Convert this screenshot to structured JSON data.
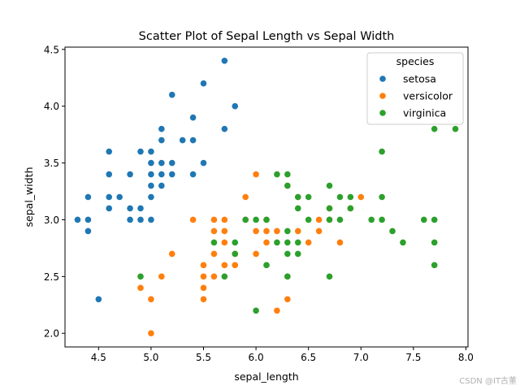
{
  "chart_data": {
    "type": "scatter",
    "title": "Scatter Plot of Sepal Length vs Sepal Width",
    "xlabel": "sepal_length",
    "ylabel": "sepal_width",
    "xlim": [
      4.18,
      8.02
    ],
    "ylim": [
      1.88,
      4.52
    ],
    "x_ticks": [
      4.5,
      5.0,
      5.5,
      6.0,
      6.5,
      7.0,
      7.5,
      8.0
    ],
    "x_tick_labels": [
      "4.5",
      "5.0",
      "5.5",
      "6.0",
      "6.5",
      "7.0",
      "7.5",
      "8.0"
    ],
    "y_ticks": [
      2.0,
      2.5,
      3.0,
      3.5,
      4.0,
      4.5
    ],
    "y_tick_labels": [
      "2.0",
      "2.5",
      "3.0",
      "3.5",
      "4.0",
      "4.5"
    ],
    "grid": false,
    "legend": {
      "title": "species",
      "placement": "top-right"
    },
    "series": [
      {
        "name": "setosa",
        "color": "#1f77b4",
        "points": [
          [
            4.3,
            3.0
          ],
          [
            4.4,
            2.9
          ],
          [
            4.4,
            3.0
          ],
          [
            4.4,
            3.2
          ],
          [
            4.5,
            2.3
          ],
          [
            4.6,
            3.1
          ],
          [
            4.6,
            3.2
          ],
          [
            4.6,
            3.4
          ],
          [
            4.6,
            3.6
          ],
          [
            4.7,
            3.2
          ],
          [
            4.8,
            3.0
          ],
          [
            4.8,
            3.1
          ],
          [
            4.8,
            3.4
          ],
          [
            4.9,
            3.0
          ],
          [
            4.9,
            3.1
          ],
          [
            4.9,
            3.6
          ],
          [
            5.0,
            3.0
          ],
          [
            5.0,
            3.2
          ],
          [
            5.0,
            3.3
          ],
          [
            5.0,
            3.4
          ],
          [
            5.0,
            3.5
          ],
          [
            5.0,
            3.6
          ],
          [
            5.1,
            3.3
          ],
          [
            5.1,
            3.4
          ],
          [
            5.1,
            3.5
          ],
          [
            5.1,
            3.7
          ],
          [
            5.1,
            3.8
          ],
          [
            5.2,
            3.4
          ],
          [
            5.2,
            3.5
          ],
          [
            5.2,
            4.1
          ],
          [
            5.3,
            3.7
          ],
          [
            5.4,
            3.4
          ],
          [
            5.4,
            3.7
          ],
          [
            5.4,
            3.9
          ],
          [
            5.5,
            3.5
          ],
          [
            5.5,
            4.2
          ],
          [
            5.7,
            3.8
          ],
          [
            5.7,
            4.4
          ],
          [
            5.8,
            4.0
          ]
        ]
      },
      {
        "name": "versicolor",
        "color": "#ff7f0e",
        "points": [
          [
            4.9,
            2.4
          ],
          [
            5.0,
            2.0
          ],
          [
            5.0,
            2.3
          ],
          [
            5.1,
            2.5
          ],
          [
            5.2,
            2.7
          ],
          [
            5.4,
            3.0
          ],
          [
            5.5,
            2.3
          ],
          [
            5.5,
            2.4
          ],
          [
            5.5,
            2.5
          ],
          [
            5.5,
            2.6
          ],
          [
            5.6,
            2.5
          ],
          [
            5.6,
            2.7
          ],
          [
            5.6,
            2.9
          ],
          [
            5.6,
            3.0
          ],
          [
            5.7,
            2.6
          ],
          [
            5.7,
            2.8
          ],
          [
            5.7,
            2.9
          ],
          [
            5.7,
            3.0
          ],
          [
            5.8,
            2.6
          ],
          [
            5.8,
            2.7
          ],
          [
            5.9,
            3.0
          ],
          [
            5.9,
            3.2
          ],
          [
            6.0,
            2.7
          ],
          [
            6.0,
            2.9
          ],
          [
            6.0,
            3.4
          ],
          [
            6.1,
            2.8
          ],
          [
            6.1,
            2.9
          ],
          [
            6.1,
            3.0
          ],
          [
            6.2,
            2.2
          ],
          [
            6.2,
            2.9
          ],
          [
            6.3,
            2.3
          ],
          [
            6.3,
            2.5
          ],
          [
            6.3,
            3.3
          ],
          [
            6.4,
            2.9
          ],
          [
            6.4,
            3.2
          ],
          [
            6.5,
            2.8
          ],
          [
            6.6,
            2.9
          ],
          [
            6.6,
            3.0
          ],
          [
            6.7,
            3.0
          ],
          [
            6.7,
            3.1
          ],
          [
            6.8,
            2.8
          ],
          [
            6.9,
            3.1
          ],
          [
            7.0,
            3.2
          ]
        ]
      },
      {
        "name": "virginica",
        "color": "#2ca02c",
        "points": [
          [
            4.9,
            2.5
          ],
          [
            5.6,
            2.8
          ],
          [
            5.7,
            2.5
          ],
          [
            5.8,
            2.7
          ],
          [
            5.8,
            2.8
          ],
          [
            5.9,
            3.0
          ],
          [
            6.0,
            2.2
          ],
          [
            6.0,
            3.0
          ],
          [
            6.1,
            2.6
          ],
          [
            6.1,
            3.0
          ],
          [
            6.2,
            2.8
          ],
          [
            6.2,
            3.4
          ],
          [
            6.3,
            2.5
          ],
          [
            6.3,
            2.7
          ],
          [
            6.3,
            2.8
          ],
          [
            6.3,
            2.9
          ],
          [
            6.3,
            3.3
          ],
          [
            6.3,
            3.4
          ],
          [
            6.4,
            2.7
          ],
          [
            6.4,
            2.8
          ],
          [
            6.4,
            3.1
          ],
          [
            6.4,
            3.2
          ],
          [
            6.5,
            3.0
          ],
          [
            6.5,
            3.2
          ],
          [
            6.7,
            2.5
          ],
          [
            6.7,
            3.0
          ],
          [
            6.7,
            3.1
          ],
          [
            6.7,
            3.3
          ],
          [
            6.8,
            3.0
          ],
          [
            6.8,
            3.2
          ],
          [
            6.9,
            3.1
          ],
          [
            6.9,
            3.2
          ],
          [
            7.1,
            3.0
          ],
          [
            7.2,
            3.0
          ],
          [
            7.2,
            3.2
          ],
          [
            7.2,
            3.6
          ],
          [
            7.3,
            2.9
          ],
          [
            7.4,
            2.8
          ],
          [
            7.6,
            3.0
          ],
          [
            7.7,
            2.6
          ],
          [
            7.7,
            2.8
          ],
          [
            7.7,
            3.0
          ],
          [
            7.7,
            3.8
          ],
          [
            7.9,
            3.8
          ]
        ]
      }
    ]
  },
  "watermark": "CSDN @IT古董"
}
